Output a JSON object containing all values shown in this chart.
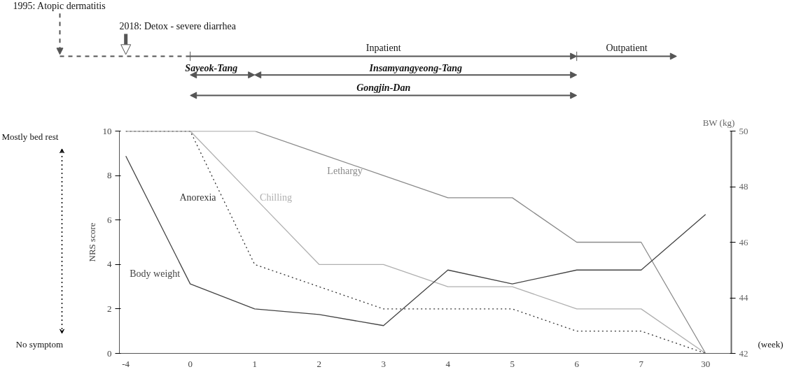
{
  "chart_data": {
    "type": "line",
    "categories": [
      "-4",
      "0",
      "1",
      "2",
      "3",
      "4",
      "5",
      "6",
      "7",
      "30"
    ],
    "xlabel": "(week)",
    "ylabel": "NRS score",
    "y2label": "BW (kg)",
    "ylim": [
      0,
      10
    ],
    "yticks": [
      0,
      2,
      4,
      6,
      8,
      10
    ],
    "y2lim": [
      42,
      50
    ],
    "y2ticks": [
      42,
      44,
      46,
      48,
      50
    ],
    "grid": false,
    "series": [
      {
        "name": "Lethargy",
        "color": "#8a8a8a",
        "line_style": "solid",
        "values": [
          10,
          10,
          10,
          9,
          8,
          7,
          7,
          5,
          5,
          0
        ]
      },
      {
        "name": "Chilling",
        "color": "#b0b0b0",
        "line_style": "solid",
        "values": [
          10,
          10,
          7,
          4,
          4,
          3,
          3,
          2,
          2,
          0
        ]
      },
      {
        "name": "Anorexia",
        "color": "#333333",
        "line_style": "dotted",
        "values": [
          10,
          10,
          4,
          3,
          2,
          2,
          2,
          1,
          1,
          0
        ]
      },
      {
        "name": "Body weight",
        "color": "#444444",
        "line_style": "solid",
        "axis": "y2",
        "values": [
          49.1,
          44.5,
          43.6,
          43.4,
          43.0,
          45,
          44.5,
          45,
          45,
          47
        ]
      }
    ],
    "annotations": [
      "1995: Atopic dermatitis",
      "2018: Detox - severe diarrhea",
      "Inpatient",
      "Outpatient",
      "Sayeok-Tang",
      "Insamyangyeong-Tang",
      "Gongjin-Dan",
      "Mostly bed rest",
      "No symptom"
    ]
  }
}
